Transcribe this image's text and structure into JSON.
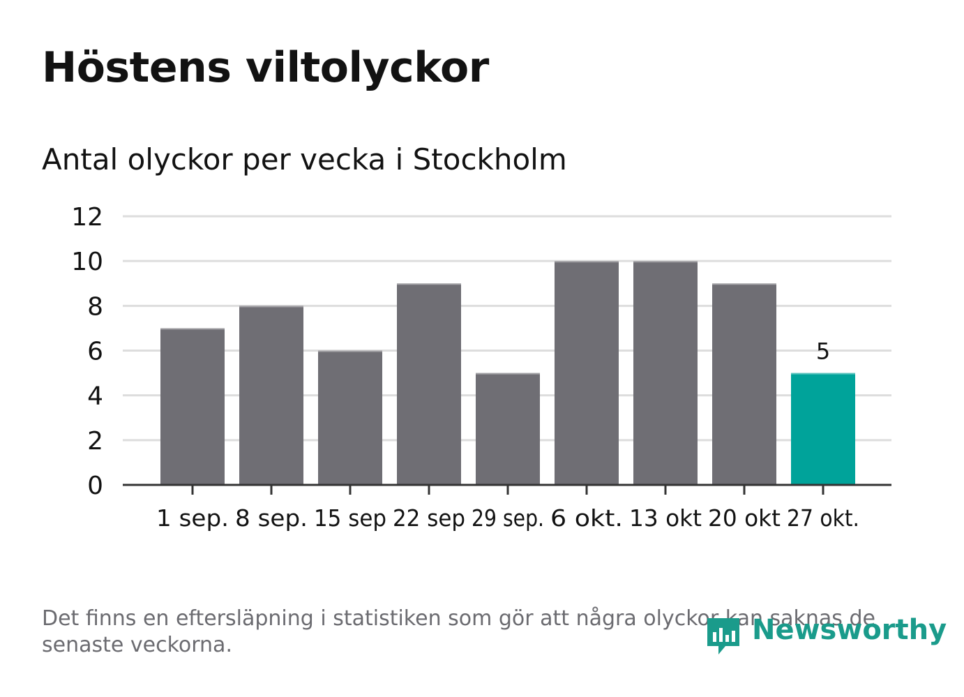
{
  "title": "Höstens viltolyckor",
  "subtitle": "Antal olyckor per vecka i Stockholm",
  "footnote": "Det finns en eftersläpning i statistiken som gör att några olyckor kan saknas de senaste veckorna.",
  "logo": {
    "text": "Newsworthy",
    "icon": "newsworthy-logo-icon",
    "color": "#1a9b8b"
  },
  "colors": {
    "bar": "#6f6e74",
    "highlight": "#00a39a",
    "grid": "#dddddd",
    "axis": "#333333",
    "tick_text": "#121212"
  },
  "chart_data": {
    "type": "bar",
    "title": "Höstens viltolyckor",
    "subtitle": "Antal olyckor per vecka i Stockholm",
    "xlabel": "",
    "ylabel": "",
    "categories": [
      "1 sep.",
      "8 sep.",
      "15 sep",
      "22 sep",
      "29 sep.",
      "6 okt.",
      "13 okt",
      "20 okt",
      "27 okt."
    ],
    "values": [
      7,
      8,
      6,
      9,
      5,
      10,
      10,
      9,
      5
    ],
    "highlight_index": 8,
    "data_labels": [
      null,
      null,
      null,
      null,
      null,
      null,
      null,
      null,
      "5"
    ],
    "ylim": [
      0,
      12
    ],
    "yticks": [
      0,
      2,
      4,
      6,
      8,
      10,
      12
    ],
    "grid": true
  }
}
